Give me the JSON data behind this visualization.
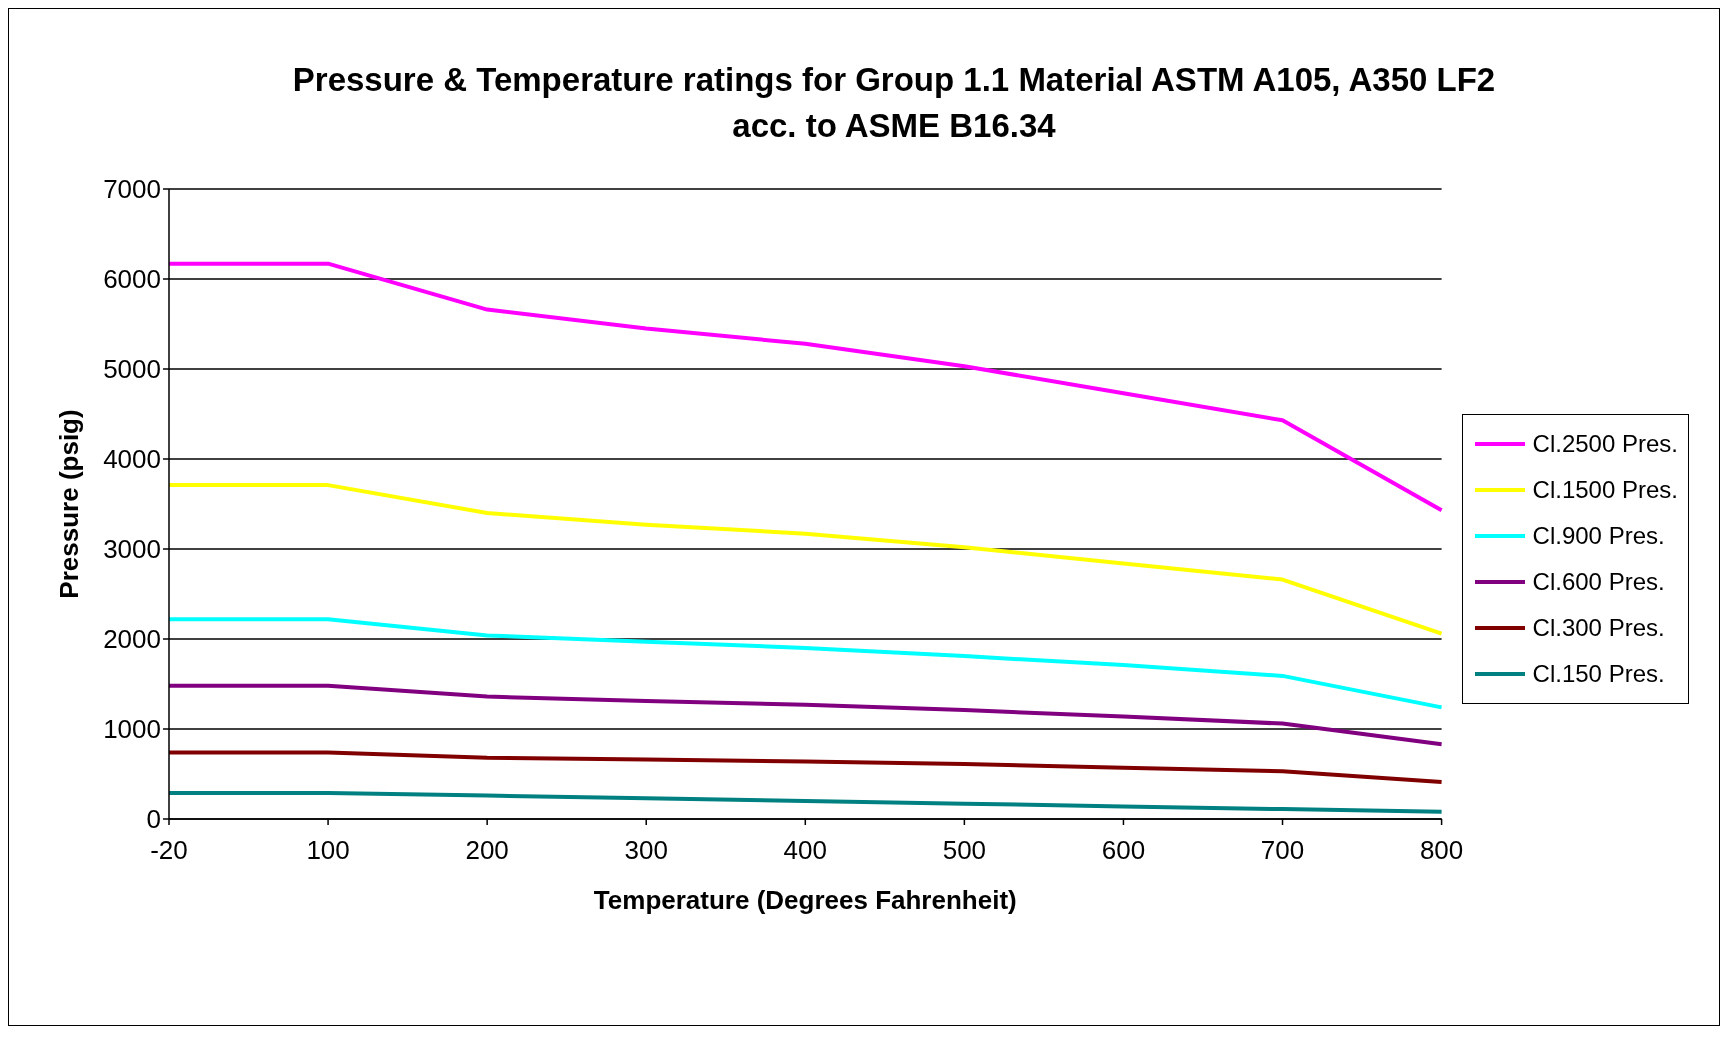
{
  "chart_data": {
    "type": "line",
    "title": "Pressure & Temperature ratings for Group 1.1 Material ASTM A105, A350 LF2 acc. to ASME B16.34",
    "xlabel": "Temperature (Degrees Fahrenheit)",
    "ylabel": "Pressure (psig)",
    "categories": [
      "-20",
      "100",
      "200",
      "300",
      "400",
      "500",
      "600",
      "700",
      "800"
    ],
    "series": [
      {
        "name": "Cl.2500 Pres.",
        "color": "#ff00ff",
        "values": [
          6170,
          6170,
          5660,
          5450,
          5280,
          5030,
          4730,
          4430,
          3430
        ]
      },
      {
        "name": "Cl.1500 Pres.",
        "color": "#ffff00",
        "values": [
          3710,
          3710,
          3400,
          3270,
          3170,
          3020,
          2840,
          2660,
          2060
        ]
      },
      {
        "name": "Cl.900 Pres.",
        "color": "#00ffff",
        "values": [
          2220,
          2220,
          2040,
          1970,
          1900,
          1810,
          1710,
          1590,
          1240
        ]
      },
      {
        "name": "Cl.600 Pres.",
        "color": "#800080",
        "values": [
          1480,
          1480,
          1360,
          1310,
          1270,
          1210,
          1140,
          1060,
          830
        ]
      },
      {
        "name": "Cl.300 Pres.",
        "color": "#800000",
        "values": [
          740,
          740,
          680,
          660,
          640,
          610,
          570,
          530,
          410
        ]
      },
      {
        "name": "Cl.150 Pres.",
        "color": "#008080",
        "values": [
          290,
          290,
          260,
          230,
          200,
          170,
          140,
          110,
          80
        ]
      }
    ],
    "ylim": [
      0,
      7000
    ],
    "yticks": [
      0,
      1000,
      2000,
      3000,
      4000,
      5000,
      6000,
      7000
    ],
    "grid": "y",
    "legend": "right",
    "marker": "none",
    "line_style": "solid"
  }
}
